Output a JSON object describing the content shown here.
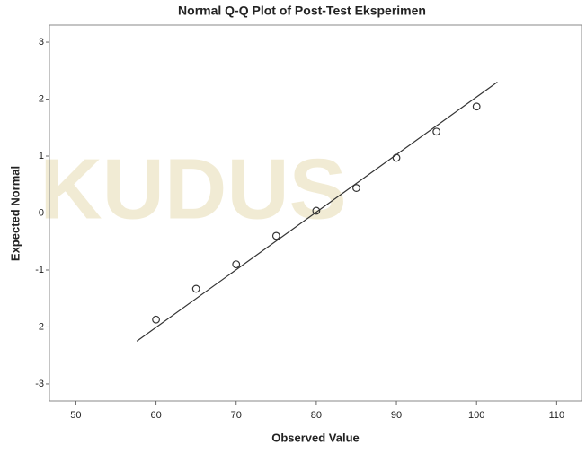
{
  "chart_data": {
    "type": "scatter",
    "title": "Normal Q-Q Plot of Post-Test Eksperimen",
    "x_label": "Observed Value",
    "y_label": "Expected Normal",
    "watermark": "KUDUS",
    "x": [
      60,
      65,
      70,
      75,
      80,
      85,
      90,
      95,
      100
    ],
    "values": [
      -1.87,
      -1.33,
      -0.9,
      -0.4,
      0.04,
      0.44,
      0.97,
      1.43,
      1.87
    ],
    "reference_line": {
      "x": [
        57.6,
        102.6
      ],
      "y": [
        -2.25,
        2.3
      ]
    },
    "xlim": [
      46.7,
      113.1
    ],
    "ylim": [
      -3.3,
      3.3
    ],
    "xticks": [
      50,
      60,
      70,
      80,
      90,
      100,
      110
    ],
    "yticks": [
      -3,
      -2,
      -1,
      0,
      1,
      2,
      3
    ],
    "color": "#333333",
    "grid": false
  }
}
